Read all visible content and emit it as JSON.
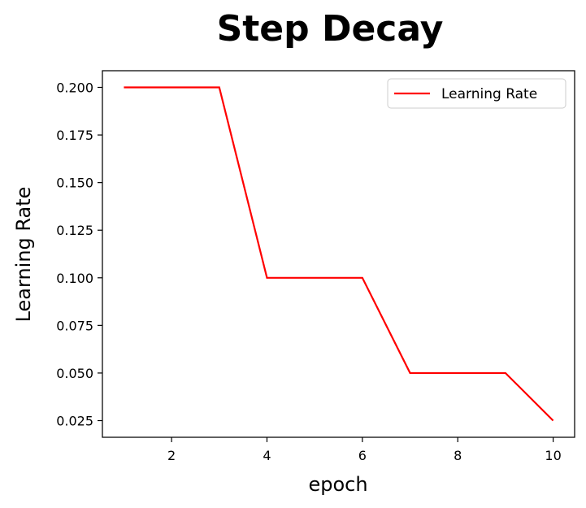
{
  "chart_data": {
    "type": "line",
    "title": "Step Decay",
    "xlabel": "epoch",
    "ylabel": "Learning Rate",
    "x": [
      1,
      2,
      3,
      4,
      5,
      6,
      7,
      8,
      9,
      10
    ],
    "series": [
      {
        "name": "Learning Rate",
        "color": "#ff0000",
        "values": [
          0.2,
          0.2,
          0.2,
          0.1,
          0.1,
          0.1,
          0.05,
          0.05,
          0.05,
          0.025
        ]
      }
    ],
    "xlim": [
      0.55,
      10.45
    ],
    "ylim": [
      0.01625,
      0.20875
    ],
    "xticks": [
      2,
      4,
      6,
      8,
      10
    ],
    "xtick_labels": [
      "2",
      "4",
      "6",
      "8",
      "10"
    ],
    "yticks": [
      0.025,
      0.05,
      0.075,
      0.1,
      0.125,
      0.15,
      0.175,
      0.2
    ],
    "ytick_labels": [
      "0.025",
      "0.050",
      "0.075",
      "0.100",
      "0.125",
      "0.150",
      "0.175",
      "0.200"
    ],
    "grid": false,
    "legend_position": "top-right"
  }
}
